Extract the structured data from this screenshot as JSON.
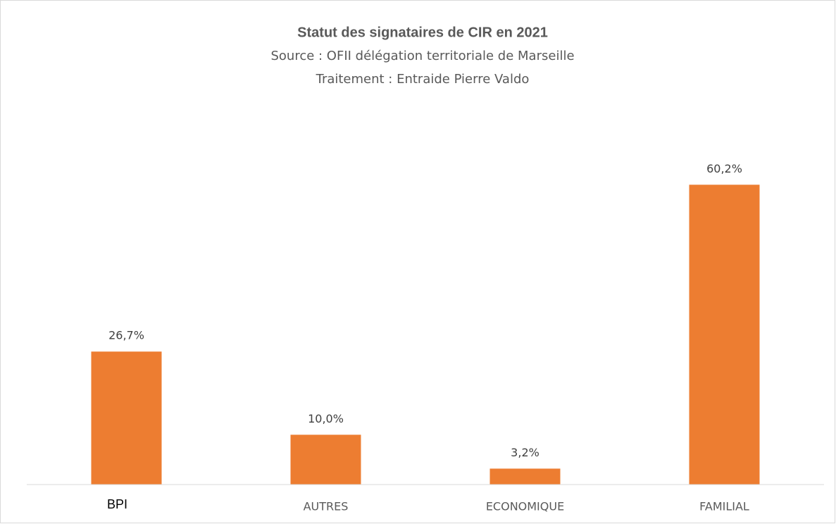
{
  "chart_data": {
    "type": "bar",
    "title": "Statut des signataires de CIR en 2021",
    "subtitle": [
      "Source : OFII délégation territoriale de Marseille",
      "Traitement : Entraide Pierre Valdo"
    ],
    "categories": [
      "BPI",
      "AUTRES",
      "ECONOMIQUE",
      "FAMILIAL"
    ],
    "values": [
      26.7,
      10.0,
      3.2,
      60.2
    ],
    "value_labels": [
      "26,7%",
      "10,0%",
      "3,2%",
      "60,2%"
    ],
    "color": "#ed7d31",
    "ylim": [
      0,
      70
    ]
  }
}
